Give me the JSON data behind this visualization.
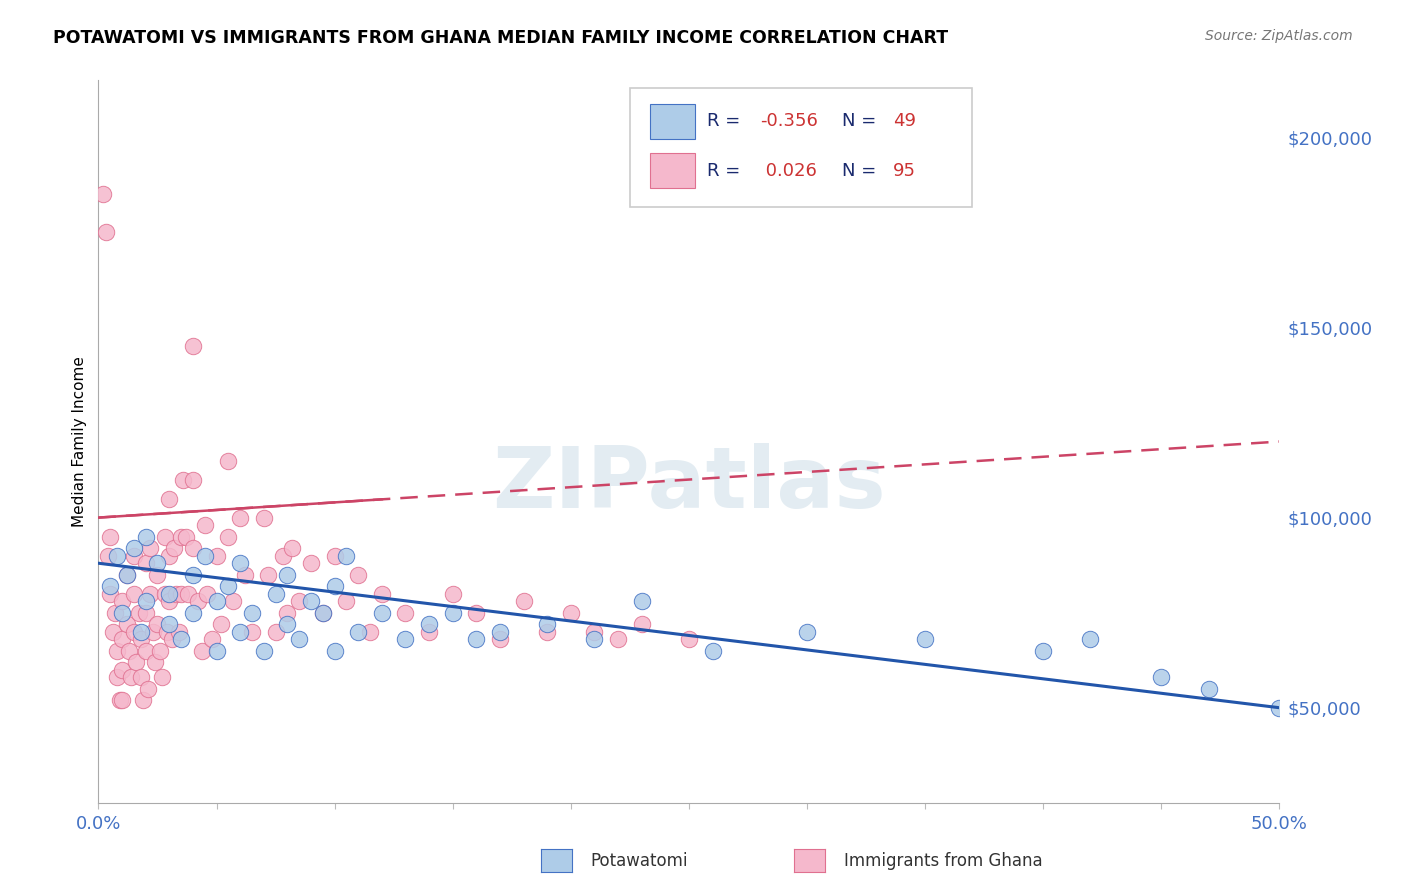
{
  "title": "POTAWATOMI VS IMMIGRANTS FROM GHANA MEDIAN FAMILY INCOME CORRELATION CHART",
  "source": "Source: ZipAtlas.com",
  "ylabel": "Median Family Income",
  "xlim": [
    0.0,
    0.5
  ],
  "ylim": [
    25000,
    215000
  ],
  "yticks": [
    50000,
    100000,
    150000,
    200000
  ],
  "ytick_labels": [
    "$50,000",
    "$100,000",
    "$150,000",
    "$200,000"
  ],
  "xticks": [
    0.0,
    0.05,
    0.1,
    0.15,
    0.2,
    0.25,
    0.3,
    0.35,
    0.4,
    0.45,
    0.5
  ],
  "legend_r_blue": "-0.356",
  "legend_n_blue": "49",
  "legend_r_pink": "0.026",
  "legend_n_pink": "95",
  "blue_color": "#aecce8",
  "pink_color": "#f5b8cc",
  "blue_edge_color": "#4472c4",
  "pink_edge_color": "#e07090",
  "blue_line_color": "#2255aa",
  "pink_line_color": "#cc4466",
  "watermark": "ZIPatlas",
  "blue_line_x0": 0.0,
  "blue_line_y0": 88000,
  "blue_line_x1": 0.5,
  "blue_line_y1": 50000,
  "pink_line_x0": 0.0,
  "pink_line_y0": 100000,
  "pink_line_x1": 0.5,
  "pink_line_y1": 120000,
  "blue_scatter_x": [
    0.005,
    0.008,
    0.01,
    0.012,
    0.015,
    0.018,
    0.02,
    0.02,
    0.025,
    0.03,
    0.03,
    0.035,
    0.04,
    0.04,
    0.045,
    0.05,
    0.05,
    0.055,
    0.06,
    0.06,
    0.065,
    0.07,
    0.075,
    0.08,
    0.08,
    0.085,
    0.09,
    0.095,
    0.1,
    0.1,
    0.105,
    0.11,
    0.12,
    0.13,
    0.14,
    0.15,
    0.16,
    0.17,
    0.19,
    0.21,
    0.23,
    0.26,
    0.3,
    0.35,
    0.4,
    0.42,
    0.45,
    0.47,
    0.5
  ],
  "blue_scatter_y": [
    82000,
    90000,
    75000,
    85000,
    92000,
    70000,
    78000,
    95000,
    88000,
    72000,
    80000,
    68000,
    85000,
    75000,
    90000,
    65000,
    78000,
    82000,
    70000,
    88000,
    75000,
    65000,
    80000,
    72000,
    85000,
    68000,
    78000,
    75000,
    82000,
    65000,
    90000,
    70000,
    75000,
    68000,
    72000,
    75000,
    68000,
    70000,
    72000,
    68000,
    78000,
    65000,
    70000,
    68000,
    65000,
    68000,
    58000,
    55000,
    50000
  ],
  "pink_scatter_x": [
    0.002,
    0.003,
    0.004,
    0.005,
    0.005,
    0.006,
    0.007,
    0.008,
    0.008,
    0.009,
    0.01,
    0.01,
    0.01,
    0.01,
    0.012,
    0.012,
    0.013,
    0.014,
    0.015,
    0.015,
    0.015,
    0.016,
    0.017,
    0.018,
    0.018,
    0.019,
    0.02,
    0.02,
    0.02,
    0.021,
    0.022,
    0.022,
    0.023,
    0.024,
    0.025,
    0.025,
    0.026,
    0.027,
    0.028,
    0.028,
    0.029,
    0.03,
    0.03,
    0.03,
    0.031,
    0.032,
    0.033,
    0.034,
    0.035,
    0.035,
    0.036,
    0.037,
    0.038,
    0.04,
    0.04,
    0.04,
    0.042,
    0.044,
    0.045,
    0.046,
    0.048,
    0.05,
    0.052,
    0.055,
    0.055,
    0.057,
    0.06,
    0.062,
    0.065,
    0.07,
    0.072,
    0.075,
    0.078,
    0.08,
    0.082,
    0.085,
    0.09,
    0.095,
    0.1,
    0.105,
    0.11,
    0.115,
    0.12,
    0.13,
    0.14,
    0.15,
    0.16,
    0.17,
    0.18,
    0.19,
    0.2,
    0.21,
    0.22,
    0.23,
    0.25
  ],
  "pink_scatter_y": [
    185000,
    175000,
    90000,
    95000,
    80000,
    70000,
    75000,
    65000,
    58000,
    52000,
    78000,
    68000,
    60000,
    52000,
    85000,
    72000,
    65000,
    58000,
    90000,
    80000,
    70000,
    62000,
    75000,
    68000,
    58000,
    52000,
    88000,
    75000,
    65000,
    55000,
    92000,
    80000,
    70000,
    62000,
    85000,
    72000,
    65000,
    58000,
    95000,
    80000,
    70000,
    105000,
    90000,
    78000,
    68000,
    92000,
    80000,
    70000,
    95000,
    80000,
    110000,
    95000,
    80000,
    145000,
    110000,
    92000,
    78000,
    65000,
    98000,
    80000,
    68000,
    90000,
    72000,
    115000,
    95000,
    78000,
    100000,
    85000,
    70000,
    100000,
    85000,
    70000,
    90000,
    75000,
    92000,
    78000,
    88000,
    75000,
    90000,
    78000,
    85000,
    70000,
    80000,
    75000,
    70000,
    80000,
    75000,
    68000,
    78000,
    70000,
    75000,
    70000,
    68000,
    72000,
    68000
  ]
}
